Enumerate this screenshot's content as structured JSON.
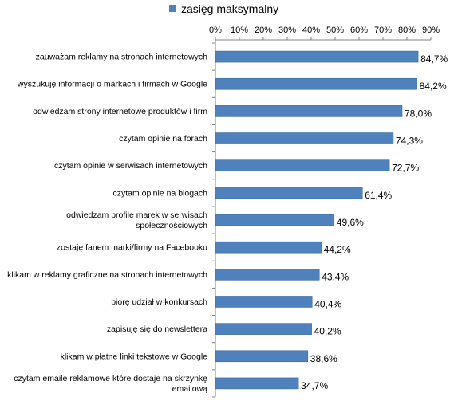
{
  "chart_data": {
    "type": "bar",
    "orientation": "horizontal",
    "legend": {
      "label": "zasięg maksymalny",
      "placement": "top"
    },
    "colors": {
      "bar": "#4F81BD",
      "bar_edge": "#3A6A9E",
      "axis": "#808080"
    },
    "xlim": [
      0,
      90
    ],
    "x_ticks": [
      "0%",
      "10%",
      "20%",
      "30%",
      "40%",
      "50%",
      "60%",
      "70%",
      "80%",
      "90%"
    ],
    "x_tick_values": [
      0,
      10,
      20,
      30,
      40,
      50,
      60,
      70,
      80,
      90
    ],
    "x_axis_position": "top",
    "grid": false,
    "categories": [
      [
        "zauważam reklamy na stronach internetowych"
      ],
      [
        "wyszukuję informacji o markach i firmach w Google"
      ],
      [
        "odwiedzam strony internetowe produktów i firm"
      ],
      [
        "czytam opinie na forach"
      ],
      [
        "czytam  opinie w serwisach internetowych"
      ],
      [
        "czytam opinie na blogach"
      ],
      [
        "odwiedzam profile marek w serwisach",
        "społecznościowych"
      ],
      [
        "zostaję fanem marki/firmy na Facebooku"
      ],
      [
        "klikam w reklamy graficzne na stronach internetowych"
      ],
      [
        "biorę udział w konkursach"
      ],
      [
        "zapisuję się do newslettera"
      ],
      [
        "klikam w płatne linki tekstowe w Google"
      ],
      [
        "czytam emaile reklamowe które dostaje na skrzynkę",
        "emailową"
      ]
    ],
    "values": [
      84.7,
      84.2,
      78.0,
      74.3,
      72.7,
      61.4,
      49.6,
      44.2,
      43.4,
      40.4,
      40.2,
      38.6,
      34.7
    ],
    "value_labels": [
      "84,7%",
      "84,2%",
      "78,0%",
      "74,3%",
      "72,7%",
      "61,4%",
      "49,6%",
      "44,2%",
      "43,4%",
      "40,4%",
      "40,2%",
      "38,6%",
      "34,7%"
    ]
  }
}
